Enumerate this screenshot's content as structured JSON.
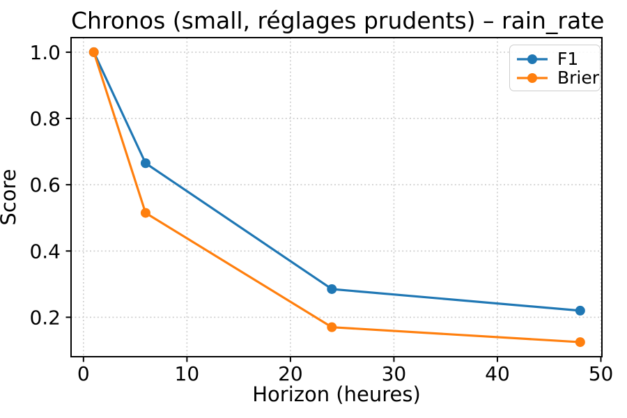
{
  "figure": {
    "background": "#ffffff",
    "axis_color": "#000000",
    "grid_color": "#cccccc",
    "legend_border_color": "#cccccc"
  },
  "chart_data": {
    "type": "line",
    "title": "Chronos (small, réglages prudents) – rain_rate",
    "xlabel": "Horizon (heures)",
    "ylabel": "Score",
    "x": [
      1,
      6,
      24,
      48
    ],
    "series": [
      {
        "name": "F1",
        "color": "#1f77b4",
        "values": [
          1.0,
          0.665,
          0.285,
          0.22
        ]
      },
      {
        "name": "Brier",
        "color": "#ff7f0e",
        "values": [
          1.0,
          0.515,
          0.17,
          0.125
        ]
      }
    ],
    "xticks": [
      0,
      10,
      20,
      30,
      40,
      50
    ],
    "xtick_labels": [
      "0",
      "10",
      "20",
      "30",
      "40",
      "50"
    ],
    "yticks": [
      0.2,
      0.4,
      0.6,
      0.8,
      1.0
    ],
    "ytick_labels": [
      "0.2",
      "0.4",
      "0.6",
      "0.8",
      "1.0"
    ],
    "xlim": [
      -1.2,
      50.1
    ],
    "ylim": [
      0.081,
      1.044
    ],
    "grid": true,
    "legend_position": "upper right",
    "marker": "circle",
    "marker_size": 14,
    "line_width": 3.2
  }
}
